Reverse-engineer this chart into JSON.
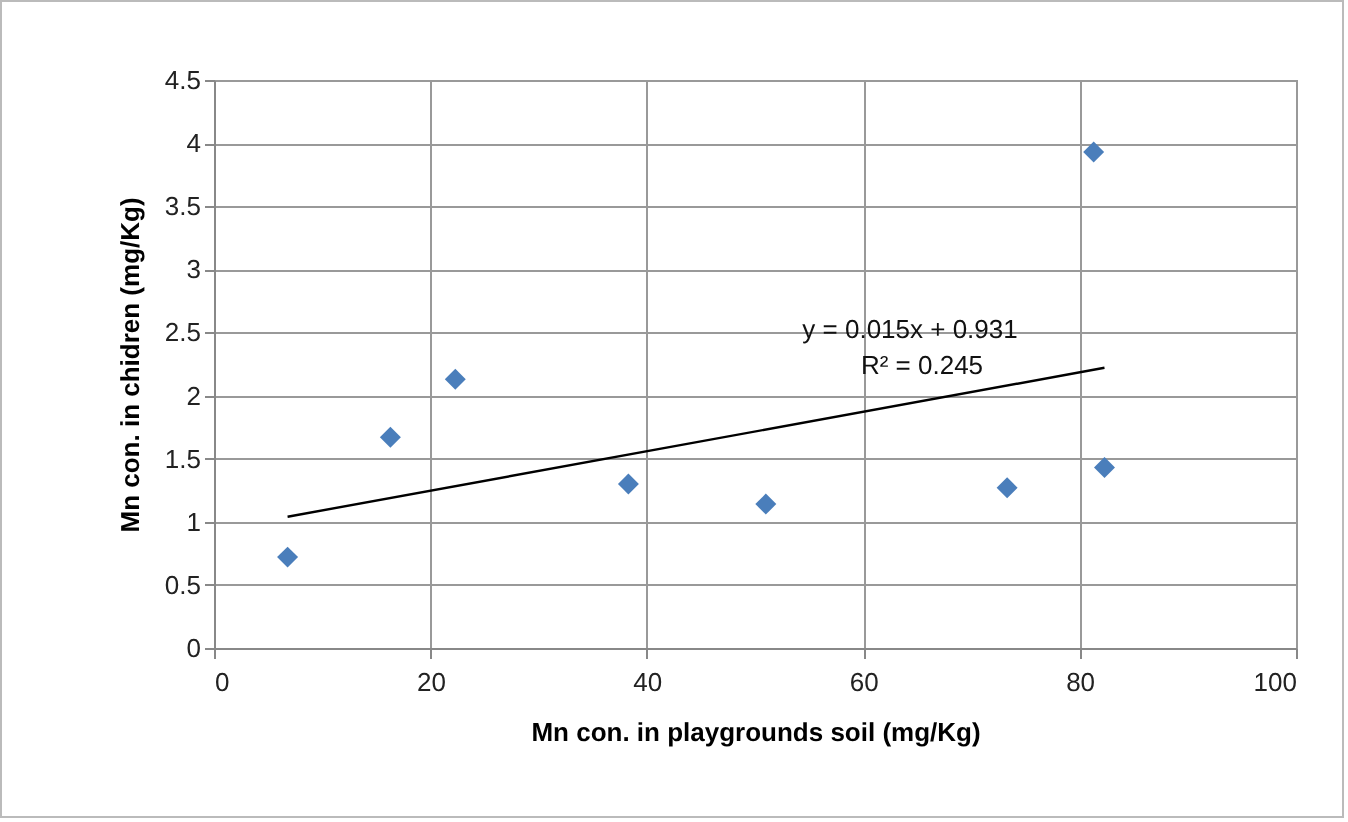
{
  "chart_data": {
    "type": "scatter",
    "xlabel": "Mn con. in playgrounds soil (mg/Kg)",
    "ylabel": "Mn con. in chidren (mg/Kg)",
    "series": [
      {
        "color": "#4a7ebb",
        "marker": "diamond",
        "x": [
          6.8,
          16.3,
          22.3,
          38.3,
          51,
          73.3,
          81.3,
          82.3
        ],
        "values": [
          0.72,
          1.67,
          2.13,
          1.3,
          1.14,
          1.27,
          3.93,
          1.43
        ]
      },
      {
        "type": "line",
        "color": "#000000",
        "x": [
          6.8,
          82.3
        ],
        "values": [
          1.04,
          2.22
        ]
      }
    ],
    "xlim": [
      0,
      100
    ],
    "xticks": [
      0,
      20,
      40,
      60,
      80,
      100
    ],
    "ylim": [
      0,
      4.5
    ],
    "yticks": [
      0,
      0.5,
      1,
      1.5,
      2,
      2.5,
      3,
      3.5,
      4,
      4.5
    ],
    "grid": true,
    "annotations": [
      "y = 0.015x + 0.931",
      "R² = 0.245"
    ]
  }
}
